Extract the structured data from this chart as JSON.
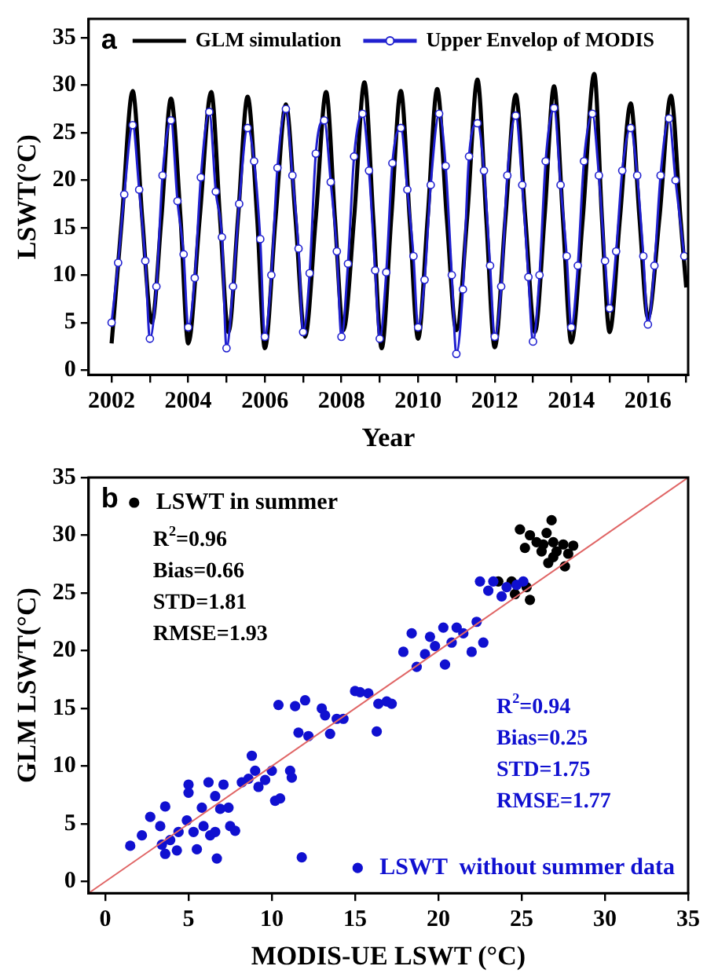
{
  "chart_data": [
    {
      "type": "line",
      "title": "a",
      "xlabel": "Year",
      "ylabel": "LSWT(°C)",
      "xlim": [
        2001.4,
        2017.05
      ],
      "ylim": [
        -0.5,
        37
      ],
      "xticks": [
        2002,
        {
          "value": 2003,
          "label": null
        },
        2004,
        {
          "value": 2005,
          "label": null
        },
        2006,
        {
          "value": 2007,
          "label": null
        },
        2008,
        {
          "value": 2009,
          "label": null
        },
        2010,
        {
          "value": 2011,
          "label": null
        },
        2012,
        {
          "value": 2013,
          "label": null
        },
        2014,
        {
          "value": 2015,
          "label": null
        },
        2016,
        {
          "value": 2017,
          "label": null
        }
      ],
      "yticks": [
        0,
        5,
        10,
        15,
        20,
        25,
        30,
        35
      ],
      "grid": false,
      "legend": "top",
      "series": [
        {
          "name": "GLM simulation",
          "color": "#000000",
          "marker": "none",
          "x": [
            2002.0,
            2002.27,
            2002.55,
            2002.8,
            2003.05,
            2003.3,
            2003.55,
            2003.8,
            2004.0,
            2004.3,
            2004.6,
            2004.83,
            2005.05,
            2005.3,
            2005.55,
            2005.8,
            2006.0,
            2006.28,
            2006.55,
            2006.8,
            2007.05,
            2007.33,
            2007.6,
            2007.83,
            2008.05,
            2008.33,
            2008.6,
            2008.83,
            2009.05,
            2009.3,
            2009.55,
            2009.78,
            2010.0,
            2010.25,
            2010.5,
            2010.75,
            2011.0,
            2011.28,
            2011.55,
            2011.78,
            2012.0,
            2012.28,
            2012.55,
            2012.8,
            2013.05,
            2013.3,
            2013.55,
            2013.78,
            2014.0,
            2014.3,
            2014.6,
            2014.8,
            2015.0,
            2015.27,
            2015.55,
            2015.78,
            2016.0,
            2016.3,
            2016.6,
            2016.85,
            2017.0
          ],
          "values": [
            2.8,
            16,
            29.4,
            16,
            5.0,
            16,
            28.6,
            16,
            2.8,
            16,
            29.3,
            16,
            4.0,
            16,
            28.8,
            16,
            2.3,
            16,
            28.0,
            16,
            3.5,
            16,
            29.3,
            16,
            4.2,
            16,
            30.3,
            16,
            2.3,
            16,
            29.4,
            16,
            3.3,
            16,
            29.6,
            16,
            4.2,
            16,
            30.6,
            16,
            2.4,
            16,
            29.0,
            16,
            4.0,
            16,
            29.9,
            16,
            2.9,
            16,
            31.2,
            16,
            4.0,
            16,
            28.1,
            16,
            5.5,
            16,
            28.9,
            16,
            8.7
          ]
        },
        {
          "name": "Upper Envelop of MODIS",
          "color": "#2020d0",
          "marker": "circle",
          "x": [
            2002.0,
            2002.17,
            2002.33,
            2002.55,
            2002.72,
            2002.88,
            2003.0,
            2003.17,
            2003.33,
            2003.55,
            2003.72,
            2003.88,
            2004.0,
            2004.17,
            2004.33,
            2004.55,
            2004.72,
            2004.88,
            2005.0,
            2005.17,
            2005.33,
            2005.55,
            2005.72,
            2005.88,
            2006.0,
            2006.17,
            2006.33,
            2006.55,
            2006.72,
            2006.88,
            2007.0,
            2007.17,
            2007.33,
            2007.55,
            2007.72,
            2007.88,
            2008.0,
            2008.17,
            2008.33,
            2008.55,
            2008.72,
            2008.88,
            2009.0,
            2009.17,
            2009.33,
            2009.55,
            2009.72,
            2009.88,
            2010.0,
            2010.17,
            2010.33,
            2010.55,
            2010.72,
            2010.88,
            2011.0,
            2011.17,
            2011.33,
            2011.55,
            2011.72,
            2011.88,
            2012.0,
            2012.17,
            2012.33,
            2012.55,
            2012.72,
            2012.88,
            2013.0,
            2013.17,
            2013.33,
            2013.55,
            2013.72,
            2013.88,
            2014.0,
            2014.17,
            2014.33,
            2014.55,
            2014.72,
            2014.88,
            2015.0,
            2015.17,
            2015.33,
            2015.55,
            2015.72,
            2015.88,
            2016.0,
            2016.17,
            2016.33,
            2016.55,
            2016.72,
            2016.95
          ],
          "values": [
            5.0,
            11.3,
            18.5,
            25.8,
            19.0,
            11.5,
            3.3,
            8.8,
            20.5,
            26.3,
            17.8,
            12.2,
            4.5,
            9.7,
            20.3,
            27.2,
            18.8,
            14.0,
            2.3,
            8.8,
            17.5,
            25.5,
            22.0,
            13.8,
            3.5,
            10.0,
            21.3,
            27.5,
            20.5,
            12.8,
            4.0,
            10.2,
            22.8,
            26.3,
            19.8,
            12.5,
            3.5,
            11.2,
            22.5,
            27.0,
            21.0,
            10.5,
            3.3,
            10.3,
            21.8,
            25.5,
            19.0,
            12.0,
            4.5,
            9.5,
            19.5,
            27.0,
            21.5,
            10.0,
            1.7,
            8.5,
            22.5,
            26.0,
            21.0,
            11.0,
            3.5,
            8.8,
            20.5,
            26.8,
            19.5,
            9.8,
            3.0,
            10.0,
            22.0,
            27.6,
            19.5,
            12.0,
            4.5,
            11.0,
            22.0,
            27.0,
            20.5,
            11.5,
            6.5,
            12.5,
            21.0,
            25.5,
            20.5,
            12.0,
            4.8,
            11.0,
            20.5,
            26.5,
            20.0,
            12.0
          ]
        }
      ]
    },
    {
      "type": "scatter",
      "title": "b",
      "xlabel": "MODIS-UE LSWT (°C)",
      "ylabel": "GLM LSWT(°C)",
      "xlim": [
        -1,
        35
      ],
      "ylim": [
        -1,
        35
      ],
      "xticks": [
        0,
        5,
        10,
        15,
        20,
        25,
        30,
        35
      ],
      "yticks": [
        0,
        5,
        10,
        15,
        20,
        25,
        30,
        35
      ],
      "grid": false,
      "marker": "circle",
      "legend": "top left",
      "annotations": [
        "R$^{2}$=0.96",
        "Bias=0.66",
        "STD=1.81",
        "RMSE=1.93",
        "R$^{2}$=0.94",
        "Bias=0.25",
        "STD=1.75",
        "RMSE=1.77"
      ],
      "series": [
        {
          "name": "LSWT in summer",
          "color": "#000000",
          "x": [
            24.9,
            25.2,
            25.5,
            25.9,
            26.2,
            26.5,
            26.8,
            26.9,
            27.1,
            27.5,
            27.8,
            28.1,
            27.6,
            26.9,
            26.3,
            23.6,
            24.4,
            24.6,
            25.5,
            25.3,
            26.6
          ],
          "values": [
            30.5,
            28.9,
            30.0,
            29.4,
            28.6,
            30.2,
            31.3,
            29.4,
            28.6,
            29.2,
            28.4,
            29.1,
            27.3,
            28.1,
            29.2,
            26.0,
            26.0,
            24.9,
            24.4,
            25.5,
            27.6
          ]
        },
        {
          "name": "LSWT  without summer data",
          "color": "#1010d0",
          "x": [
            1.5,
            2.2,
            2.7,
            3.3,
            3.4,
            3.6,
            3.6,
            3.9,
            4.3,
            4.4,
            4.9,
            5.0,
            5.0,
            5.3,
            5.5,
            5.8,
            5.9,
            6.2,
            6.3,
            6.6,
            6.6,
            6.7,
            6.9,
            7.1,
            7.4,
            7.5,
            7.8,
            8.2,
            8.6,
            8.8,
            9.0,
            9.2,
            9.6,
            10.0,
            10.2,
            10.5,
            10.4,
            11.1,
            11.2,
            11.4,
            11.6,
            11.8,
            12.0,
            12.2,
            13.0,
            13.2,
            13.5,
            13.9,
            14.3,
            15.0,
            15.3,
            15.8,
            16.3,
            16.4,
            16.9,
            17.2,
            17.9,
            18.4,
            18.7,
            19.2,
            19.5,
            19.8,
            20.3,
            20.4,
            20.8,
            21.1,
            21.5,
            22.0,
            22.3,
            22.7,
            22.5,
            23.0,
            23.3,
            23.8,
            24.1,
            24.7,
            25.1
          ],
          "values": [
            3.1,
            4.0,
            5.6,
            4.8,
            3.2,
            2.4,
            6.5,
            3.6,
            2.7,
            4.3,
            5.3,
            8.4,
            7.7,
            4.3,
            2.8,
            6.4,
            4.8,
            8.6,
            4.0,
            7.4,
            4.3,
            2.0,
            6.3,
            8.4,
            6.4,
            4.8,
            4.4,
            8.6,
            8.9,
            10.9,
            9.6,
            8.2,
            8.8,
            9.6,
            7.0,
            7.2,
            15.3,
            9.6,
            9.0,
            15.2,
            12.9,
            2.1,
            15.7,
            12.6,
            15.0,
            14.4,
            12.8,
            14.1,
            14.1,
            16.5,
            16.4,
            16.3,
            13.0,
            15.4,
            15.6,
            15.4,
            19.9,
            21.5,
            18.6,
            19.7,
            21.2,
            20.4,
            22.0,
            18.8,
            20.7,
            22.0,
            21.5,
            19.9,
            22.5,
            20.7,
            26.0,
            25.2,
            26.0,
            24.7,
            25.5,
            25.7,
            26.0
          ]
        },
        {
          "type": "line",
          "color": "#e06666",
          "marker": "none",
          "x": [
            -1,
            35
          ],
          "values": [
            -1,
            35
          ]
        }
      ]
    }
  ]
}
